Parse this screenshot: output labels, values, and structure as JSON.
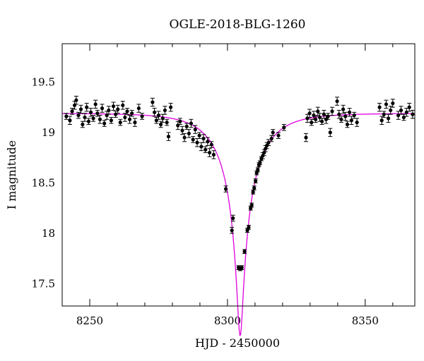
{
  "chart_data": {
    "type": "scatter",
    "title": "OGLE-2018-BLG-1260",
    "xlabel": "HJD - 2450000",
    "ylabel": "I magnitude",
    "xlim": [
      8240,
      8368
    ],
    "ylim": [
      19.88,
      17.28
    ],
    "y_inverted": true,
    "x_ticks": [
      8250,
      8300,
      8350
    ],
    "y_ticks": [
      17.5,
      18,
      18.5,
      19,
      19.5
    ],
    "x_tick_labels": [
      "8250",
      "8300",
      "8350"
    ],
    "y_tick_labels": [
      "17.5",
      "18",
      "18.5",
      "19",
      "19.5"
    ],
    "grid": false,
    "colors": {
      "data": "#000000",
      "model": "#e000e0"
    },
    "model": {
      "type": "microlensing-fit",
      "t0": 8304.6,
      "u0": 0.065,
      "tE": 15.0,
      "baseline": 19.19,
      "blend_fraction": 0.46
    },
    "series": [
      {
        "kind": "points-with-errorbars",
        "points": [
          [
            8241.5,
            19.16,
            0.03
          ],
          [
            8242.8,
            19.12,
            0.04
          ],
          [
            8243.6,
            19.21,
            0.03
          ],
          [
            8244.5,
            19.27,
            0.04
          ],
          [
            8245.1,
            19.32,
            0.04
          ],
          [
            8245.9,
            19.17,
            0.03
          ],
          [
            8246.8,
            19.23,
            0.04
          ],
          [
            8247.4,
            19.08,
            0.03
          ],
          [
            8248.2,
            19.15,
            0.04
          ],
          [
            8248.9,
            19.25,
            0.04
          ],
          [
            8249.6,
            19.11,
            0.03
          ],
          [
            8250.4,
            19.2,
            0.04
          ],
          [
            8251.3,
            19.14,
            0.03
          ],
          [
            8252.1,
            19.28,
            0.04
          ],
          [
            8252.8,
            19.19,
            0.03
          ],
          [
            8253.7,
            19.13,
            0.04
          ],
          [
            8254.5,
            19.24,
            0.04
          ],
          [
            8255.3,
            19.09,
            0.03
          ],
          [
            8256.2,
            19.17,
            0.04
          ],
          [
            8256.9,
            19.22,
            0.04
          ],
          [
            8257.8,
            19.12,
            0.03
          ],
          [
            8258.6,
            19.26,
            0.04
          ],
          [
            8259.4,
            19.18,
            0.03
          ],
          [
            8260.2,
            19.23,
            0.04
          ],
          [
            8261.1,
            19.1,
            0.03
          ],
          [
            8262.0,
            19.27,
            0.04
          ],
          [
            8262.8,
            19.15,
            0.04
          ],
          [
            8263.6,
            19.21,
            0.03
          ],
          [
            8264.5,
            19.13,
            0.04
          ],
          [
            8265.3,
            19.19,
            0.03
          ],
          [
            8266.4,
            19.1,
            0.04
          ],
          [
            8267.8,
            19.24,
            0.04
          ],
          [
            8269.0,
            19.16,
            0.03
          ],
          [
            8272.8,
            19.3,
            0.04
          ],
          [
            8273.5,
            19.2,
            0.04
          ],
          [
            8274.2,
            19.12,
            0.03
          ],
          [
            8275.0,
            19.17,
            0.04
          ],
          [
            8275.8,
            19.08,
            0.03
          ],
          [
            8276.5,
            19.14,
            0.04
          ],
          [
            8277.3,
            19.22,
            0.04
          ],
          [
            8278.0,
            19.1,
            0.03
          ],
          [
            8278.6,
            18.96,
            0.04
          ],
          [
            8279.4,
            19.25,
            0.04
          ],
          [
            8282.0,
            19.07,
            0.04
          ],
          [
            8282.8,
            19.11,
            0.03
          ],
          [
            8283.6,
            19.02,
            0.04
          ],
          [
            8284.4,
            18.95,
            0.04
          ],
          [
            8285.2,
            19.06,
            0.03
          ],
          [
            8286.0,
            18.99,
            0.04
          ],
          [
            8286.8,
            19.09,
            0.04
          ],
          [
            8287.5,
            18.93,
            0.03
          ],
          [
            8288.3,
            19.03,
            0.04
          ],
          [
            8289.0,
            18.9,
            0.04
          ],
          [
            8289.8,
            18.97,
            0.03
          ],
          [
            8290.5,
            18.86,
            0.04
          ],
          [
            8291.3,
            18.94,
            0.04
          ],
          [
            8292.0,
            18.83,
            0.03
          ],
          [
            8292.8,
            18.91,
            0.04
          ],
          [
            8293.5,
            18.8,
            0.04
          ],
          [
            8294.2,
            18.88,
            0.03
          ],
          [
            8295.0,
            18.78,
            0.04
          ],
          [
            8299.4,
            18.44,
            0.03
          ],
          [
            8301.6,
            18.03,
            0.03
          ],
          [
            8302.0,
            18.15,
            0.03
          ],
          [
            8304.0,
            17.66,
            0.02
          ],
          [
            8304.6,
            17.65,
            0.02
          ],
          [
            8305.2,
            17.66,
            0.02
          ],
          [
            8306.2,
            17.82,
            0.02
          ],
          [
            8307.2,
            18.03,
            0.02
          ],
          [
            8307.7,
            18.06,
            0.02
          ],
          [
            8308.4,
            18.25,
            0.02
          ],
          [
            8308.8,
            18.28,
            0.02
          ],
          [
            8309.3,
            18.41,
            0.02
          ],
          [
            8309.7,
            18.45,
            0.02
          ],
          [
            8310.2,
            18.52,
            0.02
          ],
          [
            8310.6,
            18.6,
            0.02
          ],
          [
            8311.0,
            18.63,
            0.02
          ],
          [
            8311.4,
            18.68,
            0.02
          ],
          [
            8311.8,
            18.7,
            0.02
          ],
          [
            8312.3,
            18.74,
            0.02
          ],
          [
            8312.8,
            18.77,
            0.03
          ],
          [
            8313.3,
            18.8,
            0.03
          ],
          [
            8313.8,
            18.84,
            0.03
          ],
          [
            8314.3,
            18.87,
            0.03
          ],
          [
            8314.9,
            18.9,
            0.03
          ],
          [
            8316.0,
            18.94,
            0.03
          ],
          [
            8316.5,
            19.0,
            0.03
          ],
          [
            8318.5,
            18.97,
            0.03
          ],
          [
            8320.5,
            19.05,
            0.03
          ],
          [
            8328.5,
            18.95,
            0.04
          ],
          [
            8329.0,
            19.14,
            0.04
          ],
          [
            8329.8,
            19.19,
            0.04
          ],
          [
            8330.5,
            19.1,
            0.03
          ],
          [
            8331.3,
            19.17,
            0.04
          ],
          [
            8332.0,
            19.13,
            0.03
          ],
          [
            8332.8,
            19.21,
            0.04
          ],
          [
            8333.5,
            19.15,
            0.04
          ],
          [
            8334.3,
            19.11,
            0.03
          ],
          [
            8335.0,
            19.18,
            0.04
          ],
          [
            8335.8,
            19.13,
            0.04
          ],
          [
            8336.5,
            19.16,
            0.03
          ],
          [
            8337.3,
            19.0,
            0.04
          ],
          [
            8338.0,
            19.21,
            0.04
          ],
          [
            8339.8,
            19.31,
            0.04
          ],
          [
            8340.5,
            19.18,
            0.04
          ],
          [
            8341.3,
            19.13,
            0.03
          ],
          [
            8342.0,
            19.23,
            0.04
          ],
          [
            8342.8,
            19.16,
            0.04
          ],
          [
            8343.5,
            19.08,
            0.03
          ],
          [
            8344.3,
            19.2,
            0.04
          ],
          [
            8345.0,
            19.12,
            0.04
          ],
          [
            8346.0,
            19.17,
            0.03
          ],
          [
            8347.0,
            19.1,
            0.04
          ],
          [
            8355.2,
            19.25,
            0.04
          ],
          [
            8356.0,
            19.12,
            0.04
          ],
          [
            8356.8,
            19.18,
            0.03
          ],
          [
            8357.6,
            19.28,
            0.04
          ],
          [
            8358.4,
            19.14,
            0.04
          ],
          [
            8359.2,
            19.22,
            0.04
          ],
          [
            8360.0,
            19.29,
            0.04
          ],
          [
            8362.0,
            19.17,
            0.04
          ],
          [
            8363.0,
            19.22,
            0.04
          ],
          [
            8364.0,
            19.15,
            0.03
          ],
          [
            8365.0,
            19.2,
            0.04
          ],
          [
            8366.0,
            19.25,
            0.04
          ],
          [
            8367.2,
            19.18,
            0.04
          ]
        ]
      }
    ]
  }
}
